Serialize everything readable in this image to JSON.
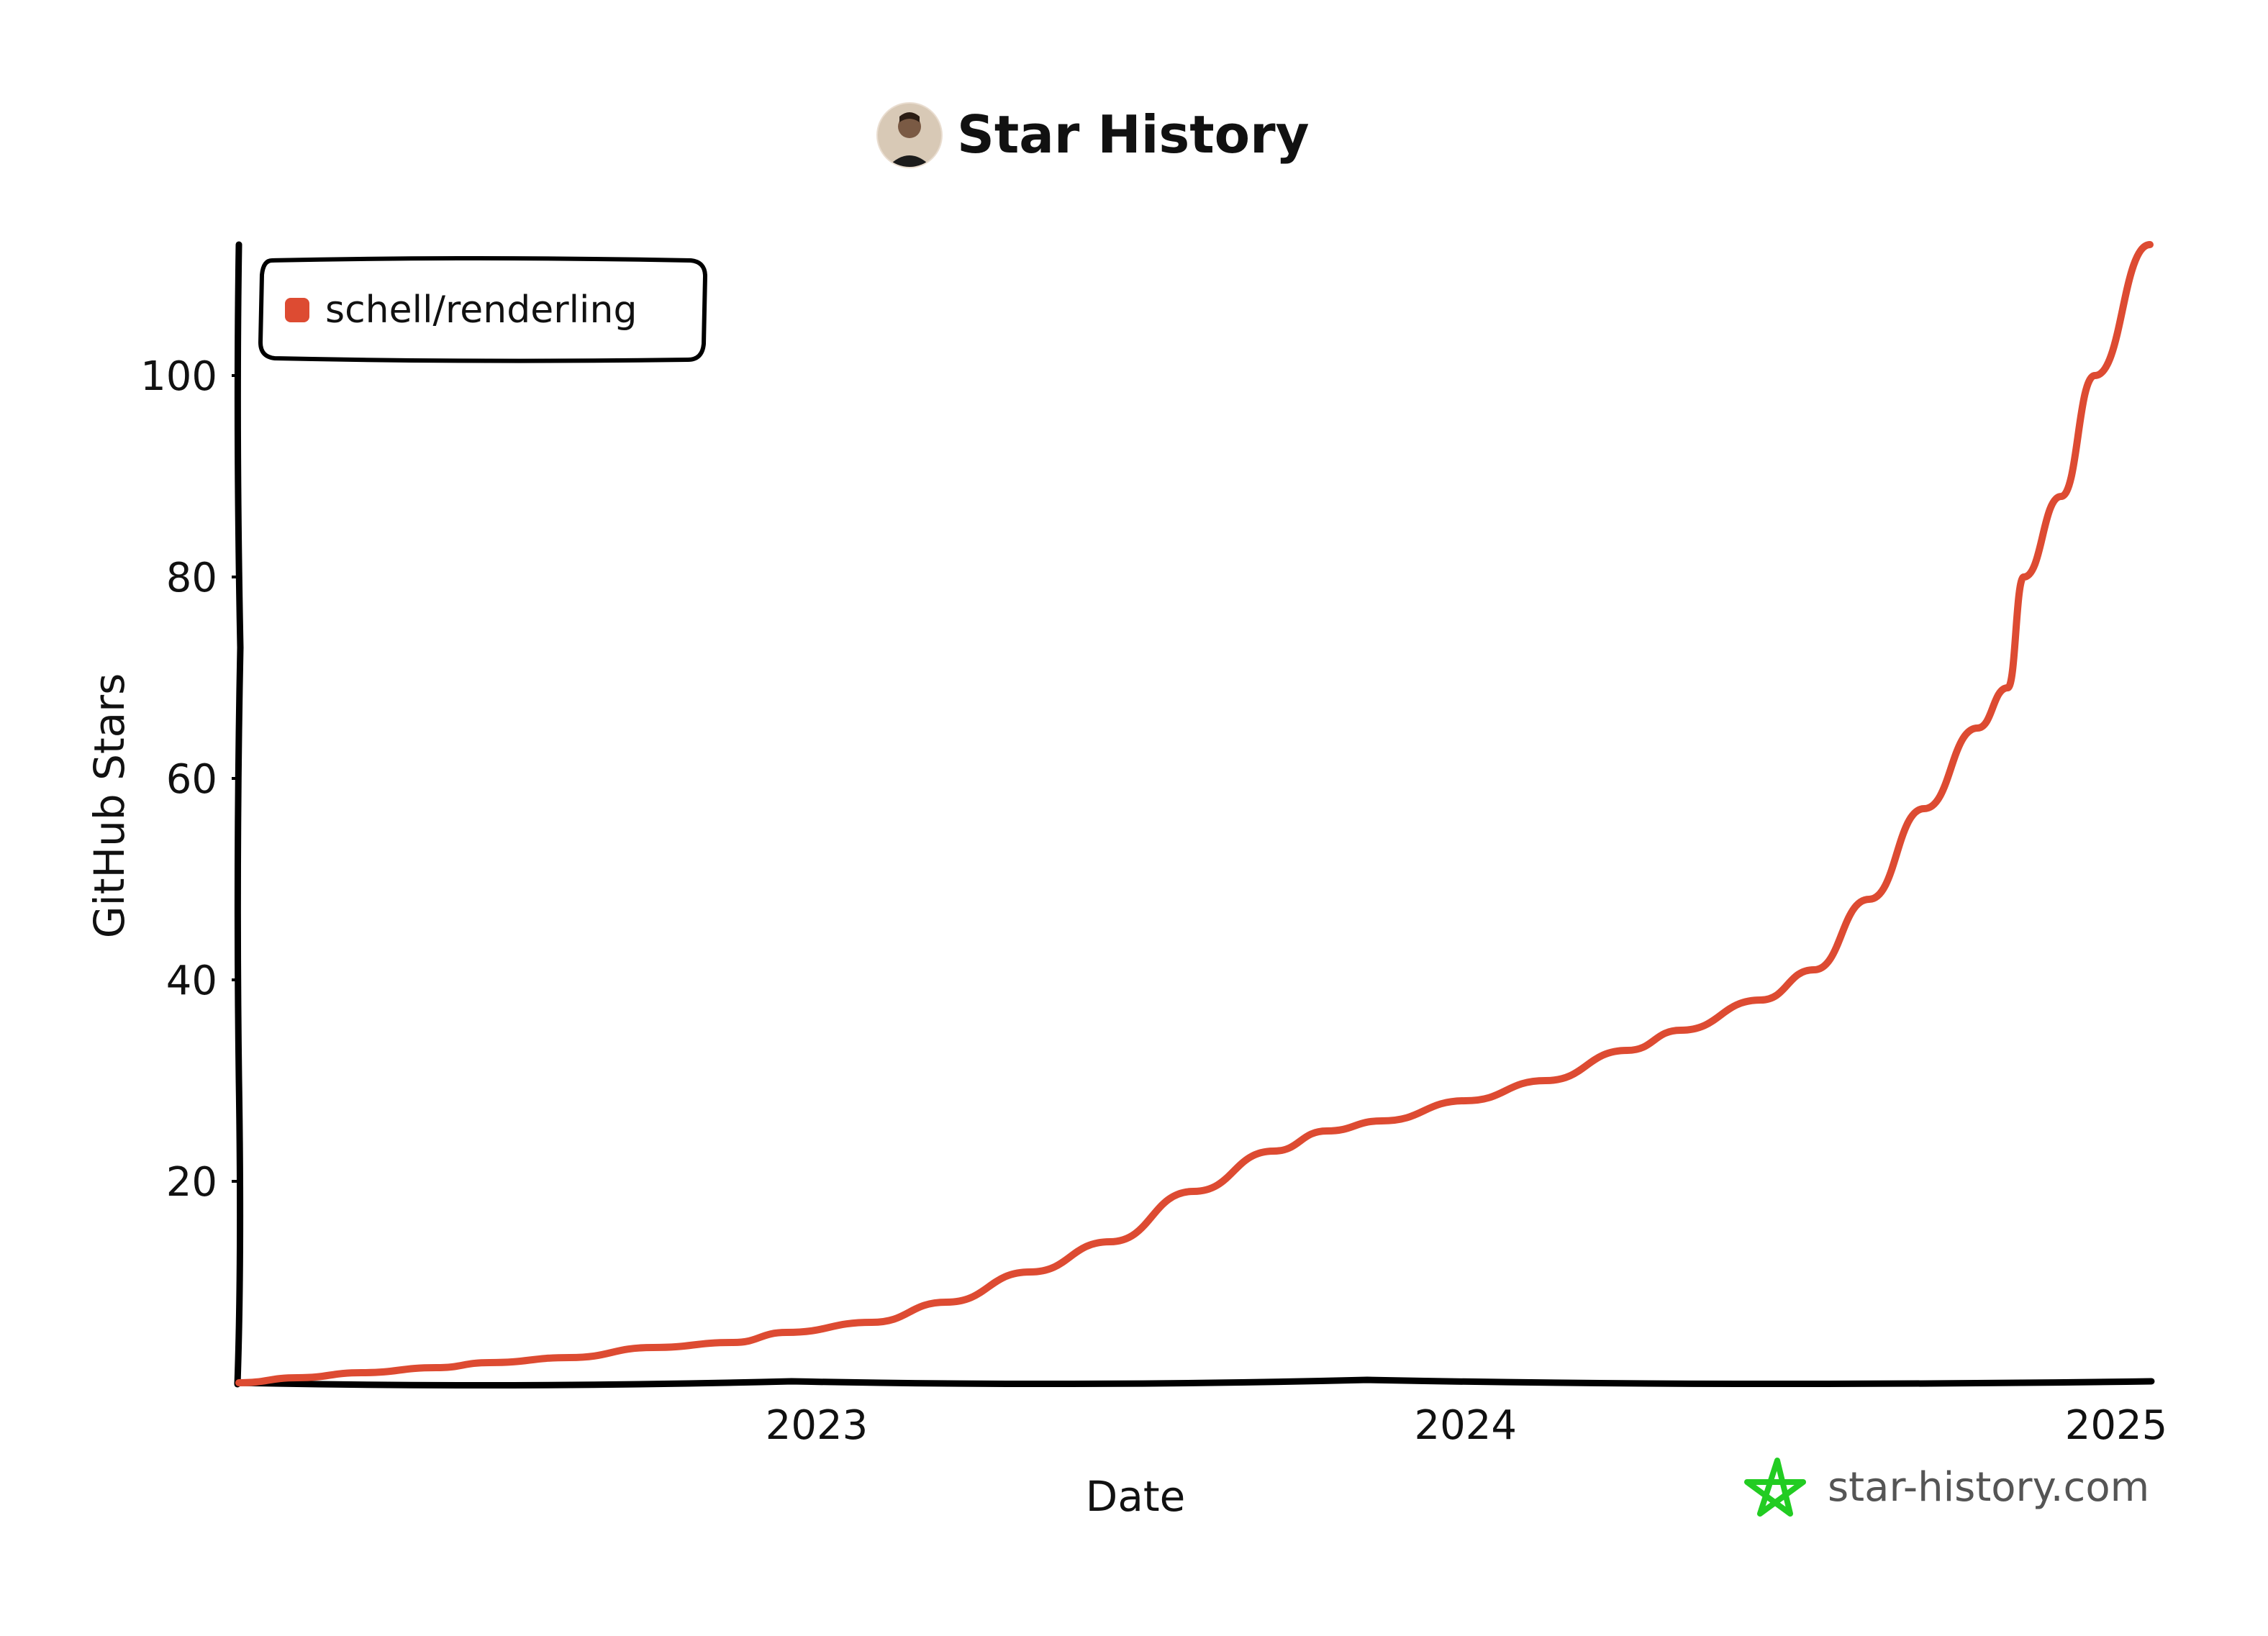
{
  "chart_data": {
    "type": "line",
    "title": "Star History",
    "xlabel": "Date",
    "ylabel": "GitHub Stars",
    "x_ticks": [
      "2023",
      "2024",
      "2025"
    ],
    "y_ticks": [
      20,
      40,
      60,
      80,
      100
    ],
    "xlim": [
      "2022-02-10",
      "2025-01-20"
    ],
    "ylim": [
      0,
      113
    ],
    "grid": false,
    "legend_position": "top-left",
    "series": [
      {
        "name": "schell/renderling",
        "color": "#dd4b32",
        "points": [
          [
            "2022-02-10",
            0
          ],
          [
            "2022-03-15",
            0.5
          ],
          [
            "2022-04-20",
            1
          ],
          [
            "2022-06-01",
            1.5
          ],
          [
            "2022-07-01",
            2
          ],
          [
            "2022-08-15",
            2.5
          ],
          [
            "2022-10-01",
            3.5
          ],
          [
            "2022-11-15",
            4
          ],
          [
            "2022-12-15",
            5
          ],
          [
            "2023-02-01",
            6
          ],
          [
            "2023-03-15",
            8
          ],
          [
            "2023-05-01",
            11
          ],
          [
            "2023-06-15",
            14
          ],
          [
            "2023-08-01",
            19
          ],
          [
            "2023-09-15",
            23
          ],
          [
            "2023-10-15",
            25
          ],
          [
            "2023-11-15",
            26
          ],
          [
            "2024-01-01",
            28
          ],
          [
            "2024-02-15",
            30
          ],
          [
            "2024-04-01",
            33
          ],
          [
            "2024-05-01",
            35
          ],
          [
            "2024-06-15",
            38
          ],
          [
            "2024-07-15",
            41
          ],
          [
            "2024-08-15",
            48
          ],
          [
            "2024-09-15",
            57
          ],
          [
            "2024-10-15",
            65
          ],
          [
            "2024-11-01",
            69
          ],
          [
            "2024-11-10",
            80
          ],
          [
            "2024-12-01",
            88
          ],
          [
            "2024-12-20",
            100
          ],
          [
            "2025-01-20",
            113
          ]
        ]
      }
    ]
  },
  "watermark": {
    "text": "star-history.com",
    "color": "#22cc22"
  },
  "avatar": {
    "icon": "user-avatar"
  }
}
